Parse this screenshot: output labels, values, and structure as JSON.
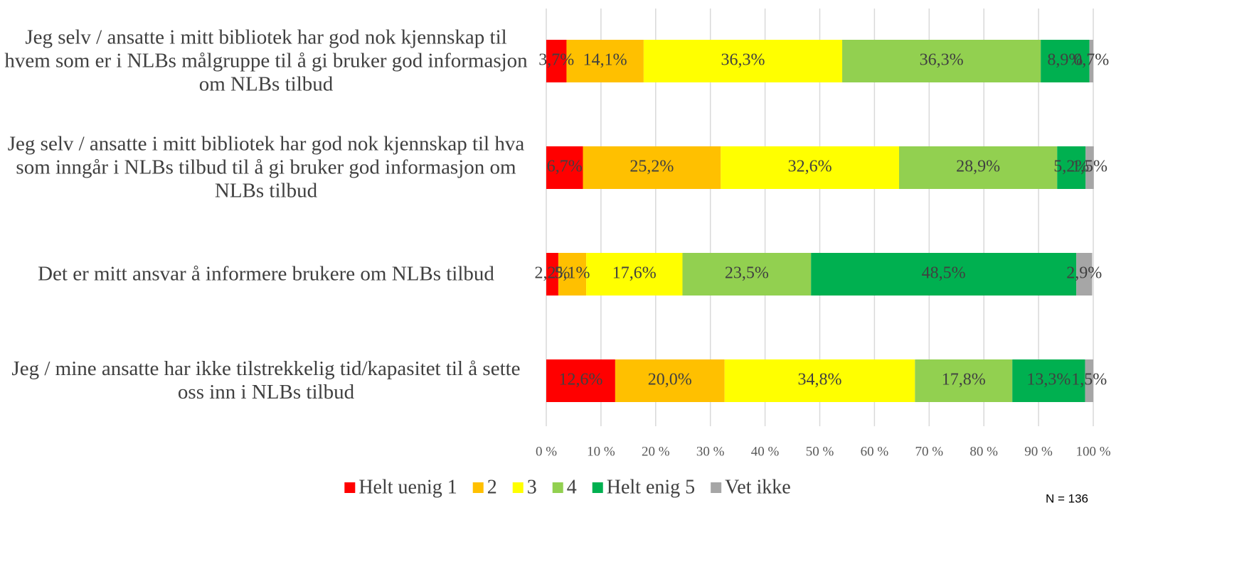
{
  "chart_data": {
    "type": "bar",
    "orientation": "horizontal",
    "stacked": true,
    "categories": [
      "Jeg selv / ansatte i mitt bibliotek har god nok kjennskap til hvem som er i NLBs målgruppe til å gi bruker god informasjon om NLBs tilbud",
      "Jeg selv / ansatte i mitt bibliotek har god nok kjennskap til hva som inngår i NLBs tilbud til å gi bruker god informasjon om NLBs tilbud",
      "Det er mitt ansvar å informere brukere om NLBs tilbud",
      "Jeg / mine ansatte har ikke tilstrekkelig tid/kapasitet til å sette oss inn i NLBs tilbud"
    ],
    "series": [
      {
        "name": "Helt uenig 1",
        "color": "#ff0000",
        "values": [
          3.7,
          6.7,
          2.2,
          12.6
        ],
        "value_labels": [
          "3,7%",
          "6,7%",
          "2,2%",
          "12,6%"
        ]
      },
      {
        "name": "2",
        "color": "#ffc000",
        "values": [
          14.1,
          25.2,
          5.1,
          20.0
        ],
        "value_labels": [
          "14,1%",
          "25,2%",
          "5,1%",
          "20,0%"
        ]
      },
      {
        "name": "3",
        "color": "#ffff00",
        "values": [
          36.3,
          32.6,
          17.6,
          34.8
        ],
        "value_labels": [
          "36,3%",
          "32,6%",
          "17,6%",
          "34,8%"
        ]
      },
      {
        "name": "4",
        "color": "#92d050",
        "values": [
          36.3,
          28.9,
          23.5,
          17.8
        ],
        "value_labels": [
          "36,3%",
          "28,9%",
          "23,5%",
          "17,8%"
        ]
      },
      {
        "name": "Helt enig 5",
        "color": "#00b050",
        "values": [
          8.9,
          5.2,
          48.5,
          13.3
        ],
        "value_labels": [
          "8,9%",
          "5,2%",
          "48,5%",
          "13,3%"
        ]
      },
      {
        "name": "Vet ikke",
        "color": "#a6a6a6",
        "values": [
          0.7,
          1.5,
          2.9,
          1.5
        ],
        "value_labels": [
          "0,7%",
          "1,5%",
          "2,9%",
          "1,5%"
        ]
      }
    ],
    "xlim": [
      0,
      100
    ],
    "xticks": [
      {
        "value": 0,
        "label": "0 %"
      },
      {
        "value": 10,
        "label": "10 %"
      },
      {
        "value": 20,
        "label": "20 %"
      },
      {
        "value": 30,
        "label": "30 %"
      },
      {
        "value": 40,
        "label": "40 %"
      },
      {
        "value": 50,
        "label": "50 %"
      },
      {
        "value": 60,
        "label": "60 %"
      },
      {
        "value": 70,
        "label": "70 %"
      },
      {
        "value": 80,
        "label": "80 %"
      },
      {
        "value": 90,
        "label": "90 %"
      },
      {
        "value": 100,
        "label": "100 %"
      }
    ],
    "grid": true,
    "legend": "bottom",
    "annotation": "N = 136"
  }
}
